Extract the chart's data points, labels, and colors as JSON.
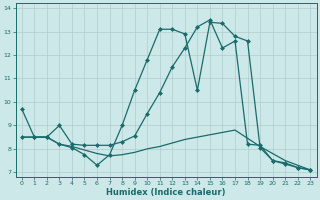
{
  "xlabel": "Humidex (Indice chaleur)",
  "xlim": [
    -0.5,
    23.5
  ],
  "ylim": [
    6.8,
    14.2
  ],
  "yticks": [
    7,
    8,
    9,
    10,
    11,
    12,
    13,
    14
  ],
  "xticks": [
    0,
    1,
    2,
    3,
    4,
    5,
    6,
    7,
    8,
    9,
    10,
    11,
    12,
    13,
    14,
    15,
    16,
    17,
    18,
    19,
    20,
    21,
    22,
    23
  ],
  "bg_color": "#cce8e8",
  "line_color": "#1a6b6b",
  "grid_color": "#b0cccc",
  "line1_x": [
    0,
    1,
    2,
    3,
    4,
    5,
    6,
    7,
    8,
    9,
    10,
    11,
    12,
    13,
    14,
    15,
    16,
    17,
    18,
    19,
    20,
    21,
    22,
    23
  ],
  "line1_y": [
    9.7,
    8.5,
    8.5,
    8.2,
    8.05,
    7.75,
    7.3,
    7.75,
    9.0,
    10.5,
    11.8,
    13.1,
    13.1,
    12.9,
    10.5,
    13.4,
    13.35,
    12.8,
    12.6,
    8.05,
    7.5,
    7.35,
    7.2,
    7.1
  ],
  "line2_x": [
    0,
    1,
    2,
    3,
    4,
    5,
    6,
    7,
    8,
    9,
    10,
    11,
    12,
    13,
    14,
    15,
    16,
    17,
    18,
    19,
    20,
    21,
    22,
    23
  ],
  "line2_y": [
    8.5,
    8.5,
    8.5,
    9.0,
    8.2,
    8.15,
    8.15,
    8.15,
    8.3,
    8.55,
    9.5,
    10.4,
    11.5,
    12.3,
    13.2,
    13.5,
    12.3,
    12.6,
    8.2,
    8.15,
    7.5,
    7.4,
    7.2,
    7.1
  ],
  "line3_x": [
    0,
    1,
    2,
    3,
    4,
    5,
    6,
    7,
    8,
    9,
    10,
    11,
    12,
    13,
    14,
    15,
    16,
    17,
    18,
    19,
    20,
    21,
    22,
    23
  ],
  "line3_y": [
    8.5,
    8.5,
    8.5,
    8.2,
    8.1,
    7.95,
    7.8,
    7.7,
    7.75,
    7.85,
    8.0,
    8.1,
    8.25,
    8.4,
    8.5,
    8.6,
    8.7,
    8.8,
    8.45,
    8.1,
    7.8,
    7.5,
    7.3,
    7.1
  ]
}
